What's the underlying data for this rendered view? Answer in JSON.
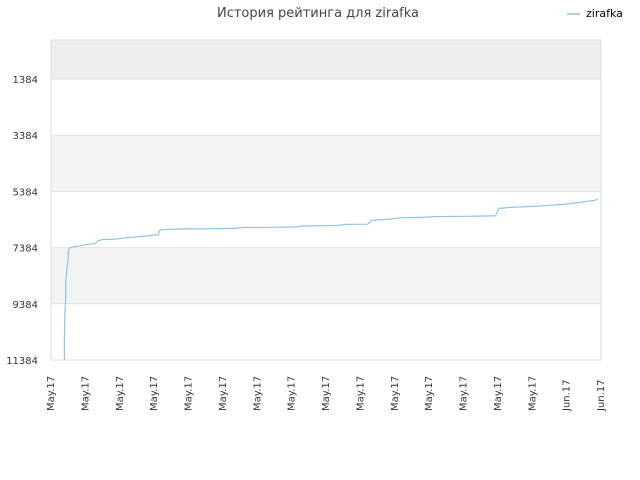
{
  "chart_data": {
    "type": "line",
    "title": "История рейтинга для zirafka",
    "xlabel": "",
    "ylabel": "",
    "x_tick_labels": [
      "May.17",
      "May.17",
      "May.17",
      "May.17",
      "May.17",
      "May.17",
      "May.17",
      "May.17",
      "May.17",
      "May.17",
      "May.17",
      "May.17",
      "May.17",
      "May.17",
      "May.17",
      "Jun.17",
      "Jun.17"
    ],
    "y_tick_labels": [
      "1384",
      "3384",
      "5384",
      "7384",
      "9384",
      "11384"
    ],
    "ylim": [
      11384,
      0
    ],
    "y_inverted": true,
    "xlim": [
      0,
      17.2
    ],
    "grid": true,
    "band_colors": [
      "#eeeeee",
      "#ffffff",
      "#f3f3f3"
    ],
    "legend_position": "top-right",
    "series": [
      {
        "name": "zirafka",
        "color": "#8ec4e8",
        "points": [
          [
            0.42,
            11384
          ],
          [
            0.42,
            10600
          ],
          [
            0.43,
            9800
          ],
          [
            0.46,
            9200
          ],
          [
            0.46,
            8600
          ],
          [
            0.5,
            8100
          ],
          [
            0.53,
            7900
          ],
          [
            0.55,
            7450
          ],
          [
            0.6,
            7380
          ],
          [
            0.7,
            7360
          ],
          [
            0.9,
            7320
          ],
          [
            1.1,
            7280
          ],
          [
            1.4,
            7230
          ],
          [
            1.45,
            7150
          ],
          [
            1.6,
            7100
          ],
          [
            2.0,
            7080
          ],
          [
            2.4,
            7030
          ],
          [
            2.8,
            6990
          ],
          [
            3.0,
            6970
          ],
          [
            3.3,
            6930
          ],
          [
            3.35,
            6950
          ],
          [
            3.4,
            6760
          ],
          [
            3.6,
            6740
          ],
          [
            4.2,
            6720
          ],
          [
            5.0,
            6710
          ],
          [
            5.8,
            6700
          ],
          [
            6.0,
            6670
          ],
          [
            7.0,
            6660
          ],
          [
            7.6,
            6650
          ],
          [
            7.8,
            6620
          ],
          [
            8.6,
            6600
          ],
          [
            9.0,
            6590
          ],
          [
            9.2,
            6560
          ],
          [
            9.9,
            6550
          ],
          [
            10.0,
            6430
          ],
          [
            10.2,
            6400
          ],
          [
            10.5,
            6380
          ],
          [
            11.0,
            6320
          ],
          [
            11.6,
            6310
          ],
          [
            12.0,
            6280
          ],
          [
            13.0,
            6270
          ],
          [
            13.6,
            6260
          ],
          [
            13.9,
            6250
          ],
          [
            14.0,
            5990
          ],
          [
            14.2,
            5970
          ],
          [
            14.4,
            5950
          ],
          [
            15.0,
            5920
          ],
          [
            15.6,
            5880
          ],
          [
            16.2,
            5830
          ],
          [
            16.6,
            5760
          ],
          [
            17.0,
            5700
          ],
          [
            17.1,
            5660
          ]
        ]
      }
    ]
  }
}
